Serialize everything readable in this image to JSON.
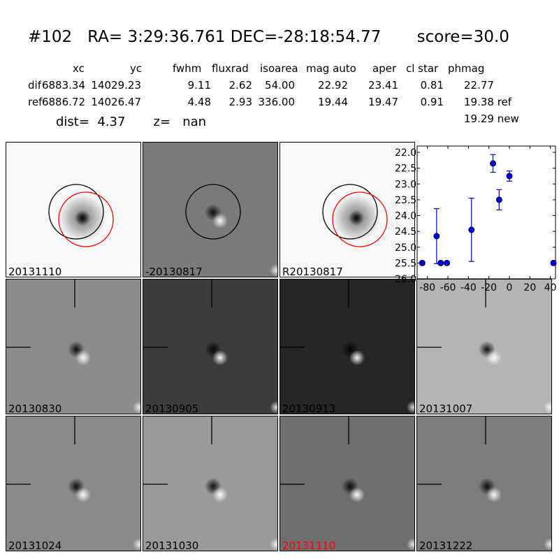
{
  "header": {
    "id": "#102",
    "ra_label": "RA=",
    "ra": "3:29:36.761",
    "dec_label": "DEC=-28:18:54.77",
    "score": "score=30.0"
  },
  "table": {
    "columns": [
      "xc",
      "yc",
      "fwhm",
      "fluxrad",
      "isoarea",
      "mag auto",
      "aper",
      "cl star",
      "phmag"
    ],
    "rows": [
      {
        "label": "dif",
        "values": [
          "6883.34",
          "14029.23",
          "9.11",
          "2.62",
          "54.00",
          "22.92",
          "23.41",
          "0.81",
          "22.77"
        ]
      },
      {
        "label": "ref",
        "values": [
          "6886.72",
          "14026.47",
          "4.48",
          "2.93",
          "336.00",
          "19.44",
          "19.47",
          "0.91",
          "19.38 ref"
        ]
      }
    ],
    "extra": "19.29 new"
  },
  "dist_line": {
    "dist": "dist=  4.37",
    "z": "z=   nan"
  },
  "panels": [
    {
      "label": "20131110",
      "kind": "image",
      "label_color": "#000000"
    },
    {
      "label": "-20130817",
      "kind": "diff",
      "label_color": "#000000"
    },
    {
      "label": "R20130817",
      "kind": "image",
      "label_color": "#000000"
    },
    {
      "label": "20130830",
      "kind": "diff",
      "label_color": "#000000"
    },
    {
      "label": "20130905",
      "kind": "diff",
      "label_color": "#000000"
    },
    {
      "label": "20130913",
      "kind": "diff",
      "label_color": "#000000"
    },
    {
      "label": "20131007",
      "kind": "diff",
      "label_color": "#000000"
    },
    {
      "label": "20131024",
      "kind": "diff",
      "label_color": "#000000"
    },
    {
      "label": "20131030",
      "kind": "diff",
      "label_color": "#000000"
    },
    {
      "label": "20131110",
      "kind": "diff",
      "label_color": "#ff0000"
    },
    {
      "label": "20131222",
      "kind": "diff",
      "label_color": "#000000"
    }
  ],
  "chart_data": {
    "type": "scatter",
    "title": "",
    "xlabel": "",
    "ylabel": "",
    "xlim": [
      -90,
      45
    ],
    "ylim": [
      26.0,
      21.8
    ],
    "y_inverted": true,
    "xticks": [
      "-80",
      "-60",
      "-40",
      "-20",
      "0",
      "20",
      "40"
    ],
    "xtick_values": [
      -80,
      -60,
      -40,
      -20,
      0,
      20,
      40
    ],
    "yticks": [
      "22.0",
      "22.5",
      "23.0",
      "23.5",
      "24.0",
      "24.5",
      "25.0",
      "25.5",
      "26.0"
    ],
    "ytick_values": [
      22.0,
      22.5,
      23.0,
      23.5,
      24.0,
      24.5,
      25.0,
      25.5,
      26.0
    ],
    "color": "#0000cc",
    "points": [
      {
        "x": -85,
        "y": 25.5,
        "err": 0.05
      },
      {
        "x": -71,
        "y": 24.65,
        "err": 0.87
      },
      {
        "x": -67,
        "y": 25.5,
        "err": 0.05
      },
      {
        "x": -61,
        "y": 25.5,
        "err": 0.05
      },
      {
        "x": -37,
        "y": 24.45,
        "err": 1.0
      },
      {
        "x": -16,
        "y": 22.35,
        "err": 0.28
      },
      {
        "x": -10,
        "y": 23.5,
        "err": 0.32
      },
      {
        "x": 0,
        "y": 22.75,
        "err": 0.16
      },
      {
        "x": 43,
        "y": 25.5,
        "err": 0.05
      }
    ]
  }
}
